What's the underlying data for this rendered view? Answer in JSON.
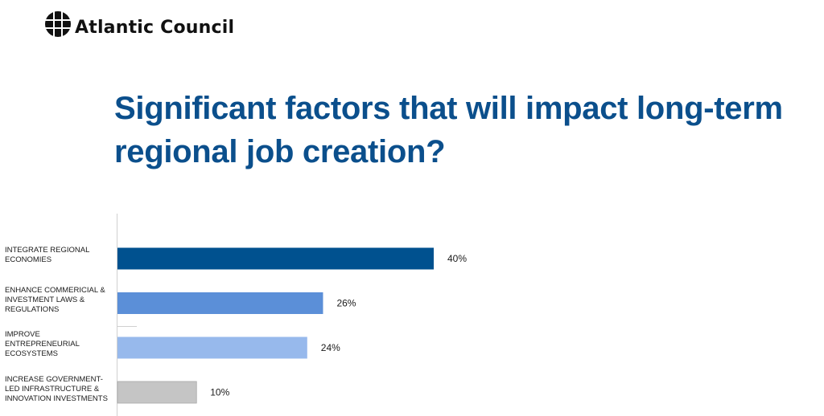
{
  "brand": {
    "name": "Atlantic Council"
  },
  "title": "Significant factors that will impact long-term regional job creation?",
  "chart_data": {
    "type": "bar",
    "orientation": "horizontal",
    "categories": [
      "INTEGRATE REGIONAL ECONOMIES",
      "ENHANCE COMMERICIAL & INVESTMENT LAWS & REGULATIONS",
      "IMPROVE ENTREPRENEURIAL ECOSYSTEMS",
      "INCREASE GOVERNMENT-LED INFRASTRUCTURE & INNOVATION INVESTMENTS"
    ],
    "values": [
      40,
      26,
      24,
      10
    ],
    "value_labels": [
      "40%",
      "26%",
      "24%",
      "10%"
    ],
    "colors": [
      "#00518f",
      "#5b8fd8",
      "#97b9ec",
      "#c5c5c5"
    ],
    "unit": "%",
    "xlim": [
      0,
      100
    ],
    "grid": false,
    "legend": "none"
  }
}
